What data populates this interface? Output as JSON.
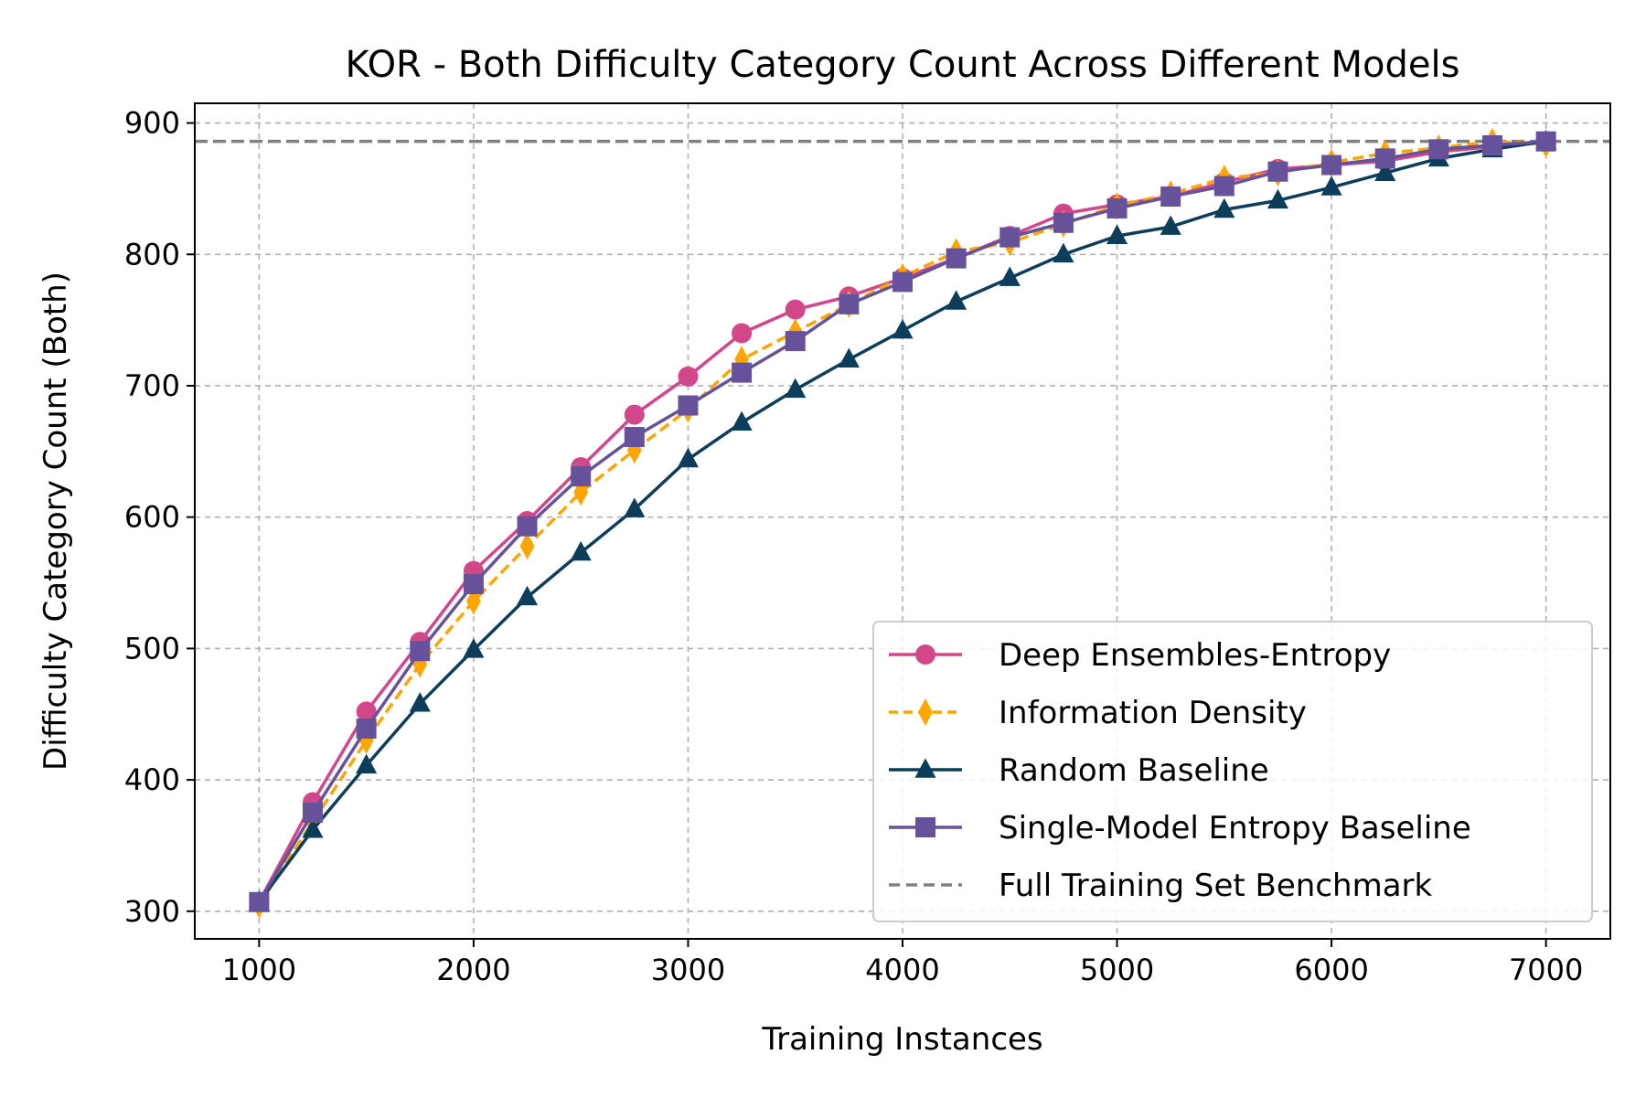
{
  "chart_data": {
    "type": "line",
    "title": "KOR - Both Difficulty Category Count Across Different Models",
    "xlabel": "Training Instances",
    "ylabel": "Difficulty Category Count (Both)",
    "xlim": [
      700,
      7300
    ],
    "ylim": [
      279,
      915
    ],
    "xticks": [
      1000,
      2000,
      3000,
      4000,
      5000,
      6000,
      7000
    ],
    "yticks": [
      300,
      400,
      500,
      600,
      700,
      800,
      900
    ],
    "grid": true,
    "legend_position": "lower right",
    "x": [
      1000,
      1250,
      1500,
      1750,
      2000,
      2250,
      2500,
      2750,
      3000,
      3250,
      3500,
      3750,
      4000,
      4250,
      4500,
      4750,
      5000,
      5250,
      5500,
      5750,
      6000,
      6250,
      6500,
      6750,
      7000
    ],
    "series": [
      {
        "name": "Deep Ensembles-Entropy",
        "color": "#d1478a",
        "marker": "circle",
        "linestyle": "solid",
        "values": [
          307,
          383,
          452,
          505,
          559,
          597,
          638,
          678,
          707,
          740,
          758,
          768,
          782,
          797,
          814,
          831,
          838,
          844,
          855,
          865,
          868,
          871,
          878,
          882,
          886
        ]
      },
      {
        "name": "Information Density",
        "color": "#ffa500",
        "marker": "diamond",
        "linestyle": "dashed",
        "values": [
          305,
          368,
          430,
          488,
          536,
          578,
          619,
          651,
          682,
          720,
          741,
          762,
          783,
          802,
          809,
          823,
          837,
          846,
          858,
          862,
          870,
          877,
          881,
          886,
          884
        ]
      },
      {
        "name": "Random Baseline",
        "color": "#0c3d5a",
        "marker": "triangle",
        "linestyle": "solid",
        "values": [
          307,
          362,
          411,
          458,
          499,
          539,
          573,
          606,
          644,
          672,
          697,
          720,
          742,
          764,
          782,
          800,
          814,
          821,
          834,
          841,
          851,
          862,
          873,
          880,
          886
        ]
      },
      {
        "name": "Single-Model Entropy Baseline",
        "color": "#66519b",
        "marker": "square",
        "linestyle": "solid",
        "values": [
          307,
          375,
          439,
          498,
          549,
          593,
          631,
          661,
          685,
          710,
          734,
          762,
          779,
          797,
          813,
          824,
          835,
          844,
          852,
          863,
          868,
          873,
          880,
          883,
          886
        ]
      }
    ],
    "reference_lines": [
      {
        "name": "Full Training Set Benchmark",
        "color": "#808080",
        "linestyle": "dashed",
        "y": 886
      }
    ]
  }
}
